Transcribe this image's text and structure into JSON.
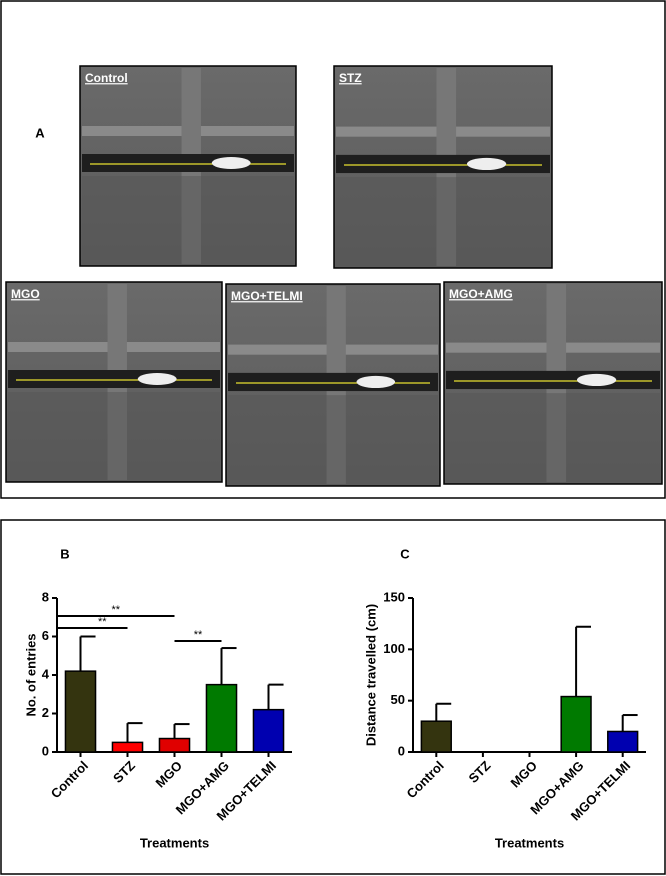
{
  "panel_a": {
    "label": "A",
    "images": [
      {
        "label": "Control"
      },
      {
        "label": "STZ"
      },
      {
        "label": "MGO"
      },
      {
        "label": "MGO+TELMI"
      },
      {
        "label": "MGO+AMG"
      }
    ]
  },
  "chart_data": [
    {
      "type": "bar",
      "panel_label": "B",
      "ylabel": "No. of entries",
      "xlabel": "Treatments",
      "categories": [
        "Control",
        "STZ",
        "MGO",
        "MGO+AMG",
        "MGO+TELMI"
      ],
      "values": [
        4.2,
        0.5,
        0.7,
        3.5,
        2.2
      ],
      "errors": [
        1.8,
        1.0,
        0.75,
        1.9,
        1.3
      ],
      "colors": [
        "#34340f",
        "#ff0000",
        "#e00000",
        "#007a00",
        "#0000b0"
      ],
      "ylim": [
        0,
        8
      ],
      "yticks": [
        0,
        2,
        4,
        6,
        8
      ],
      "annotations": [
        "**",
        "**",
        "**"
      ]
    },
    {
      "type": "bar",
      "panel_label": "C",
      "ylabel": "Distance travelled (cm)",
      "xlabel": "Treatments",
      "categories": [
        "Control",
        "STZ",
        "MGO",
        "MGO+AMG",
        "MGO+TELMI"
      ],
      "values": [
        30,
        0,
        0,
        54,
        20
      ],
      "errors": [
        17,
        0,
        0,
        68,
        16
      ],
      "colors": [
        "#34340f",
        "#ff0000",
        "#e00000",
        "#007a00",
        "#0000b0"
      ],
      "ylim": [
        0,
        150
      ],
      "yticks": [
        0,
        50,
        100,
        150
      ]
    }
  ]
}
